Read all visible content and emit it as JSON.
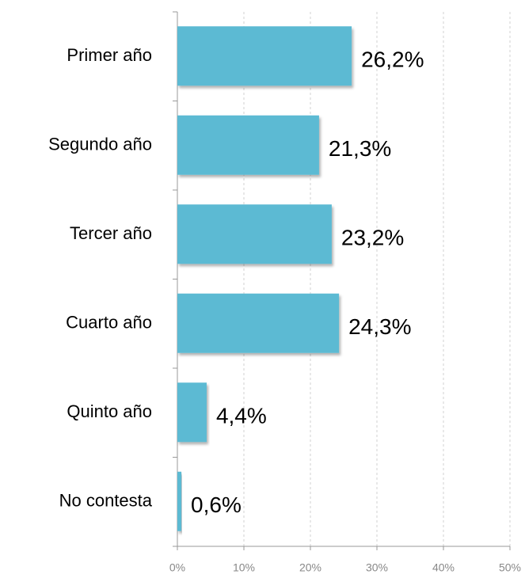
{
  "chart_data": {
    "type": "bar",
    "orientation": "horizontal",
    "categories": [
      "Primer año",
      "Segundo año",
      "Tercer año",
      "Cuarto año",
      "Quinto año",
      "No contesta"
    ],
    "values": [
      26.2,
      21.3,
      23.2,
      24.3,
      4.4,
      0.6
    ],
    "value_labels": [
      "26,2%",
      "21,3%",
      "23,2%",
      "24,3%",
      "4,4%",
      "0,6%"
    ],
    "color": "#5bbad3",
    "xlim": [
      0,
      50
    ],
    "xticks": [
      {
        "value": 0,
        "label": "0%"
      },
      {
        "value": 10,
        "label": "10%"
      },
      {
        "value": 20,
        "label": "20%"
      },
      {
        "value": 30,
        "label": "30%"
      },
      {
        "value": 40,
        "label": "40%"
      },
      {
        "value": 50,
        "label": "50%"
      }
    ],
    "grid": true
  }
}
